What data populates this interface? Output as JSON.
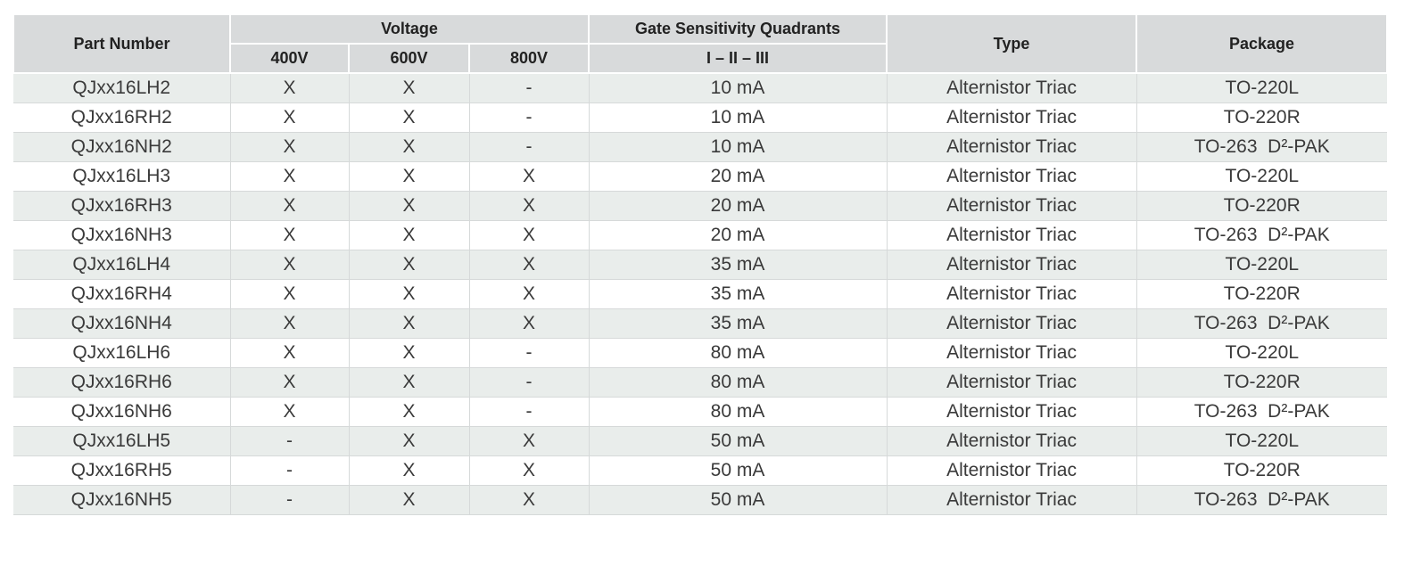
{
  "table": {
    "header": {
      "part_number": "Part Number",
      "voltage": "Voltage",
      "v400": "400V",
      "v600": "600V",
      "v800": "800V",
      "gate": "Gate Sensitivity Quadrants",
      "quadrants": "I – II – III",
      "type": "Type",
      "package": "Package"
    },
    "rows": [
      [
        "QJxx16LH2",
        "X",
        "X",
        "-",
        "10 mA",
        "Alternistor Triac",
        "TO-220L"
      ],
      [
        "QJxx16RH2",
        "X",
        "X",
        "-",
        "10 mA",
        "Alternistor Triac",
        "TO-220R"
      ],
      [
        "QJxx16NH2",
        "X",
        "X",
        "-",
        "10 mA",
        "Alternistor Triac",
        "TO-263  D²-PAK"
      ],
      [
        "QJxx16LH3",
        "X",
        "X",
        "X",
        "20 mA",
        "Alternistor Triac",
        "TO-220L"
      ],
      [
        "QJxx16RH3",
        "X",
        "X",
        "X",
        "20 mA",
        "Alternistor Triac",
        "TO-220R"
      ],
      [
        "QJxx16NH3",
        "X",
        "X",
        "X",
        "20 mA",
        "Alternistor Triac",
        "TO-263  D²-PAK"
      ],
      [
        "QJxx16LH4",
        "X",
        "X",
        "X",
        "35 mA",
        "Alternistor Triac",
        "TO-220L"
      ],
      [
        "QJxx16RH4",
        "X",
        "X",
        "X",
        "35 mA",
        "Alternistor Triac",
        "TO-220R"
      ],
      [
        "QJxx16NH4",
        "X",
        "X",
        "X",
        "35 mA",
        "Alternistor Triac",
        "TO-263  D²-PAK"
      ],
      [
        "QJxx16LH6",
        "X",
        "X",
        "-",
        "80 mA",
        "Alternistor Triac",
        "TO-220L"
      ],
      [
        "QJxx16RH6",
        "X",
        "X",
        "-",
        "80 mA",
        "Alternistor Triac",
        "TO-220R"
      ],
      [
        "QJxx16NH6",
        "X",
        "X",
        "-",
        "80 mA",
        "Alternistor Triac",
        "TO-263  D²-PAK"
      ],
      [
        "QJxx16LH5",
        "-",
        "X",
        "X",
        "50 mA",
        "Alternistor Triac",
        "TO-220L"
      ],
      [
        "QJxx16RH5",
        "-",
        "X",
        "X",
        "50 mA",
        "Alternistor Triac",
        "TO-220R"
      ],
      [
        "QJxx16NH5",
        "-",
        "X",
        "X",
        "50 mA",
        "Alternistor Triac",
        "TO-263  D²-PAK"
      ]
    ]
  }
}
